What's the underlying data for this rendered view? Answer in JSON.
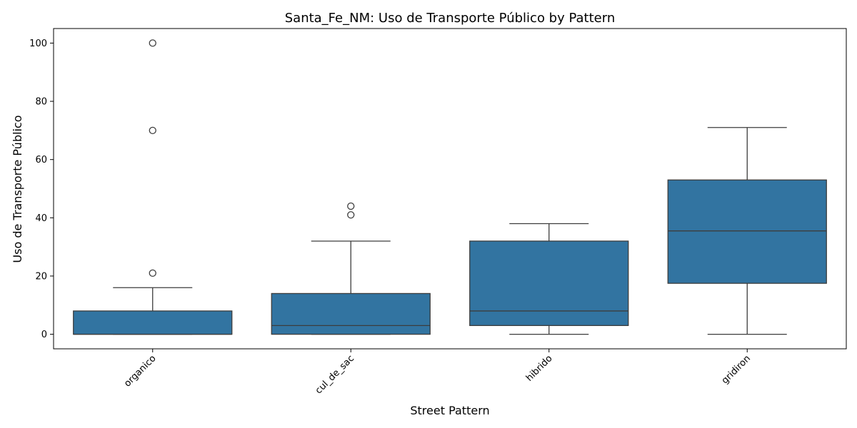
{
  "chart_data": {
    "type": "box",
    "title": "Santa_Fe_NM: Uso de Transporte Público by Pattern",
    "xlabel": "Street Pattern",
    "ylabel": "Uso de Transporte Público",
    "ylim": [
      -5,
      105
    ],
    "yticks": [
      0,
      20,
      40,
      60,
      80,
      100
    ],
    "box_color": "#3274a1",
    "line_color": "#3d3d3d",
    "grid": false,
    "categories": [
      "organico",
      "cul_de_sac",
      "hibrido",
      "gridiron"
    ],
    "boxes": [
      {
        "category": "organico",
        "whisker_low": 0,
        "q1": 0,
        "median": 0,
        "q3": 8,
        "whisker_high": 16,
        "outliers": [
          21,
          70,
          100
        ]
      },
      {
        "category": "cul_de_sac",
        "whisker_low": 0,
        "q1": 0,
        "median": 3,
        "q3": 14,
        "whisker_high": 32,
        "outliers": [
          41,
          44
        ]
      },
      {
        "category": "hibrido",
        "whisker_low": 0,
        "q1": 3,
        "median": 8,
        "q3": 32,
        "whisker_high": 38,
        "outliers": []
      },
      {
        "category": "gridiron",
        "whisker_low": 0,
        "q1": 17.5,
        "median": 35.5,
        "q3": 53,
        "whisker_high": 71,
        "outliers": []
      }
    ]
  }
}
